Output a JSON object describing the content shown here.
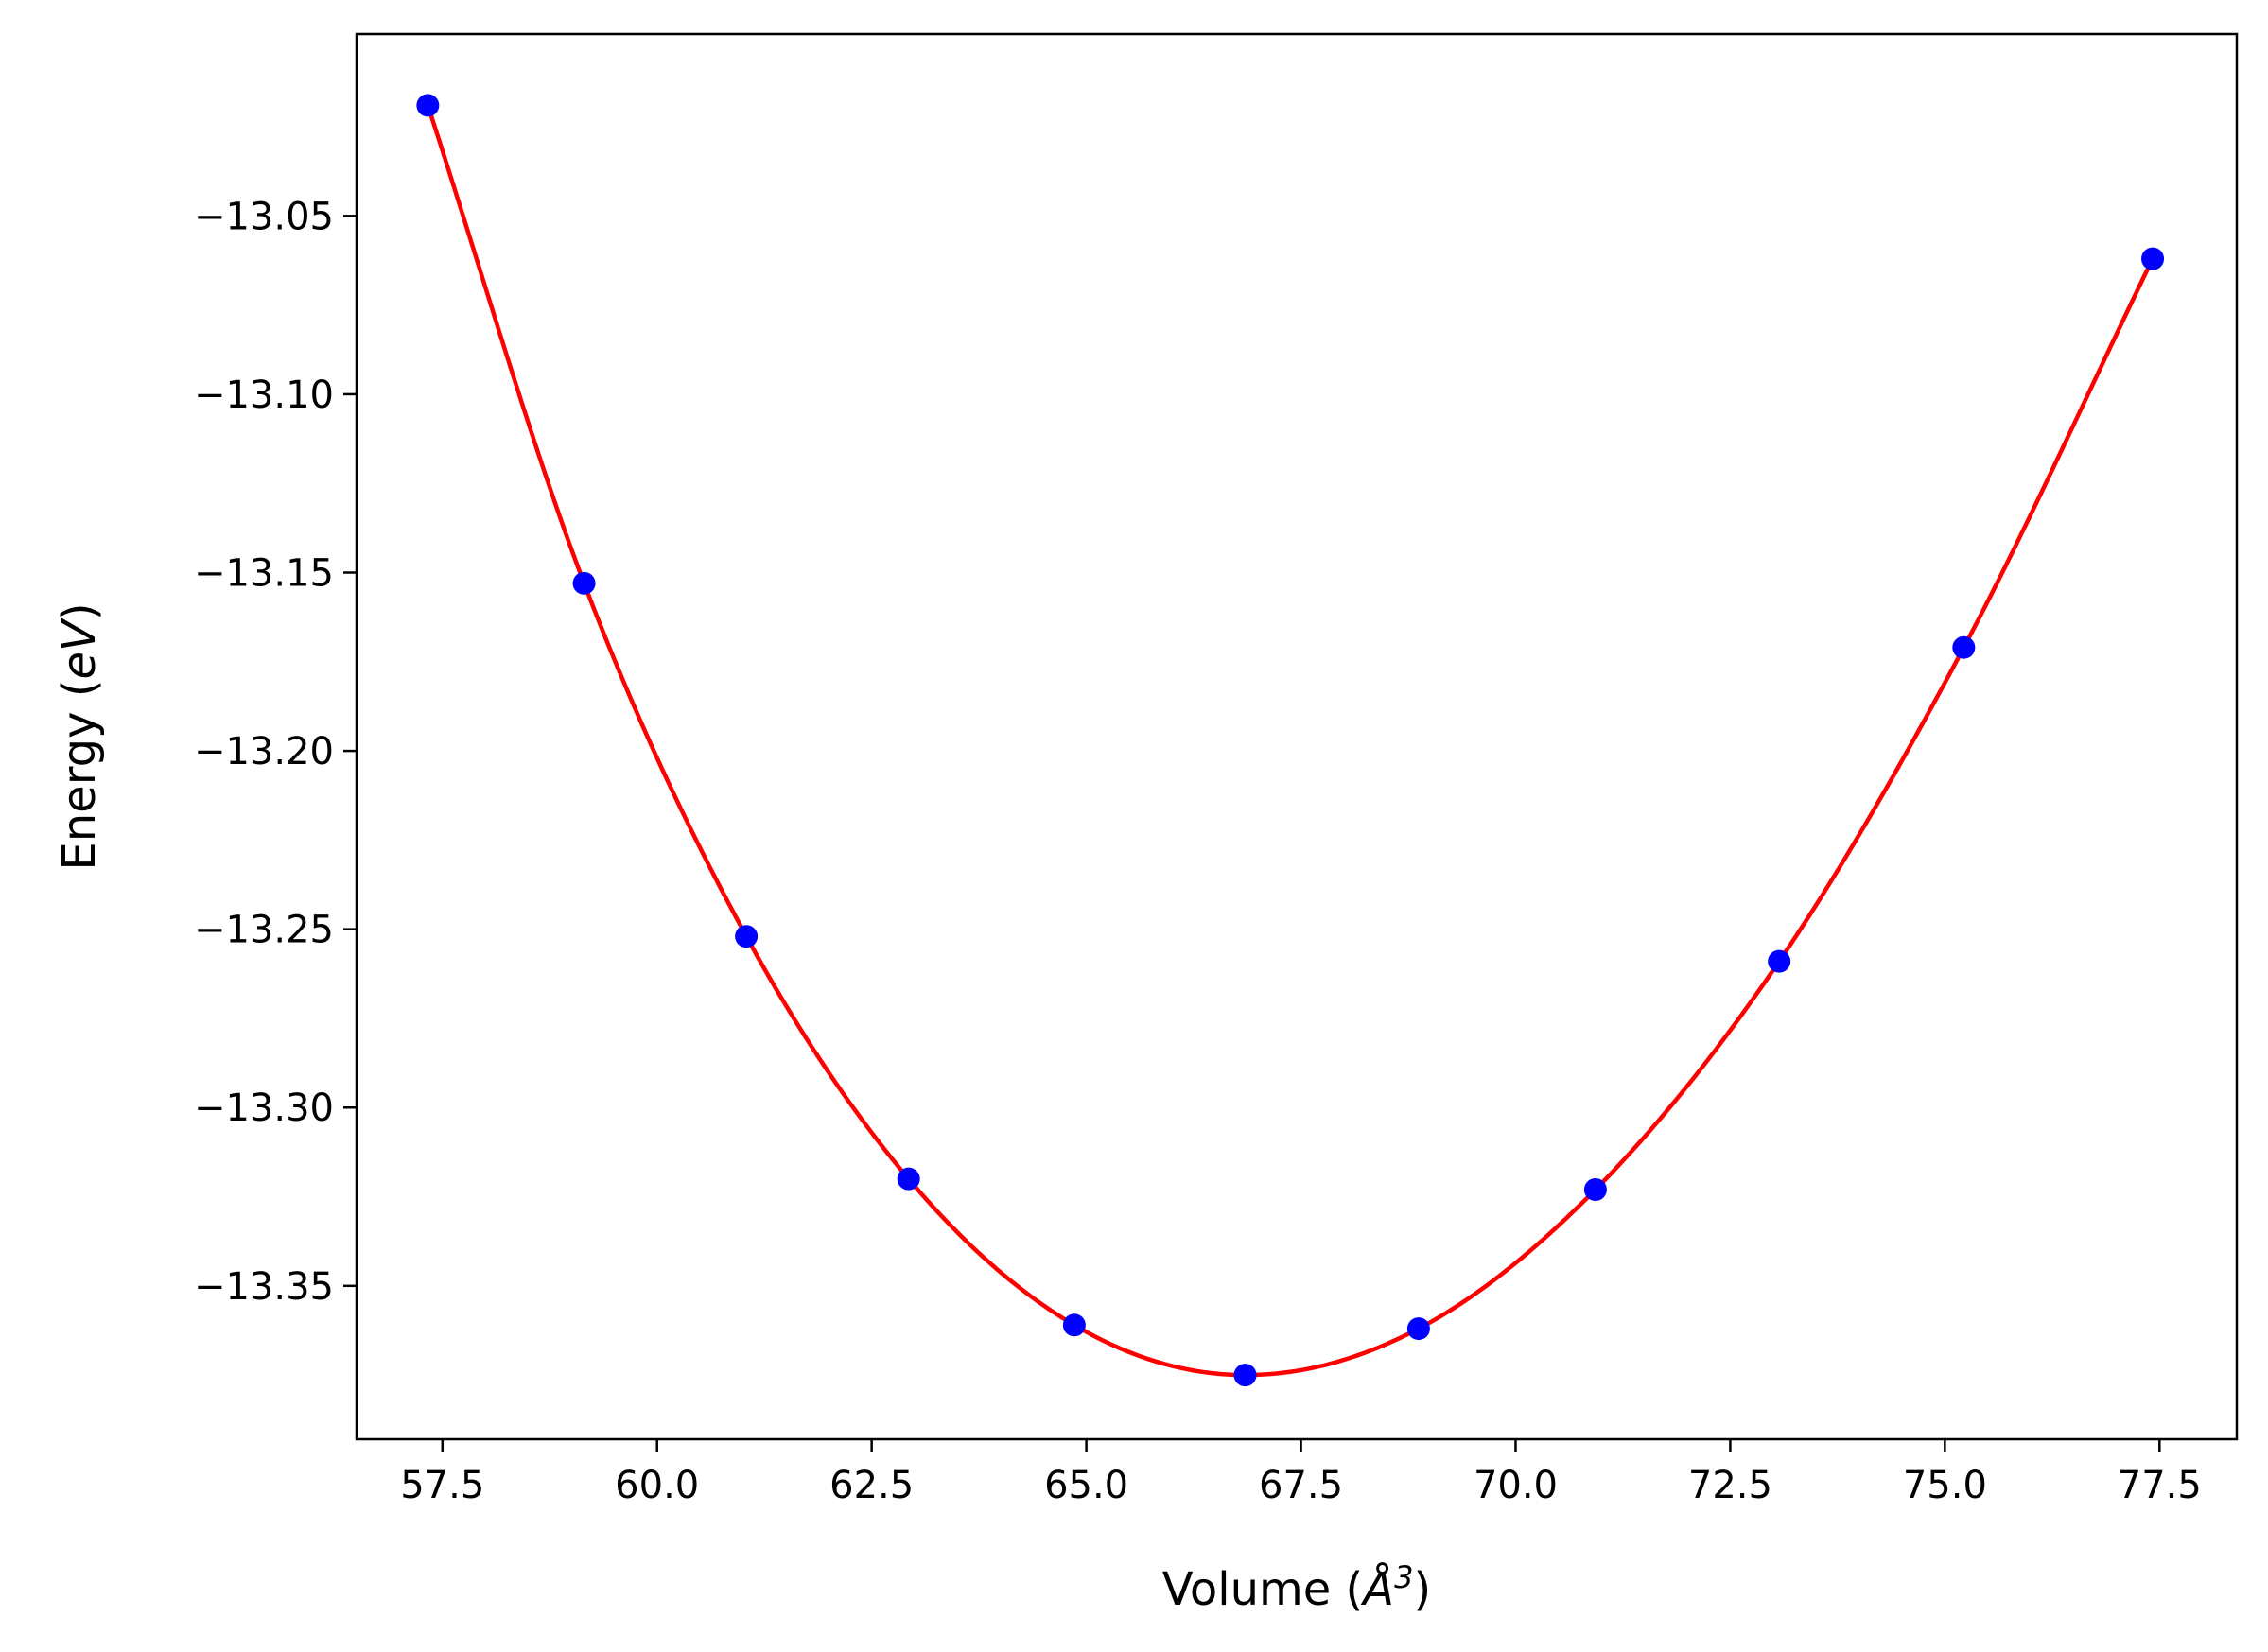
{
  "chart_data": {
    "type": "line",
    "title": "",
    "xlabel": "Volume (Å³)",
    "xlabel_parts": {
      "prefix": "Volume (",
      "symbol": "Å",
      "exponent": "3",
      "suffix": ")"
    },
    "ylabel": "Energy (eV)",
    "ylabel_parts": {
      "prefix": "Energy (",
      "unit": "eV",
      "suffix": ")"
    },
    "xlim": [
      56.5,
      78.4
    ],
    "ylim": [
      -13.393,
      -12.999
    ],
    "xticks": [
      {
        "value": 57.5,
        "label": "57.5"
      },
      {
        "value": 60.0,
        "label": "60.0"
      },
      {
        "value": 62.5,
        "label": "62.5"
      },
      {
        "value": 65.0,
        "label": "65.0"
      },
      {
        "value": 67.5,
        "label": "67.5"
      },
      {
        "value": 70.0,
        "label": "70.0"
      },
      {
        "value": 72.5,
        "label": "72.5"
      },
      {
        "value": 75.0,
        "label": "75.0"
      },
      {
        "value": 77.5,
        "label": "77.5"
      }
    ],
    "yticks": [
      {
        "value": -13.05,
        "label": "−13.05"
      },
      {
        "value": -13.1,
        "label": "−13.10"
      },
      {
        "value": -13.15,
        "label": "−13.15"
      },
      {
        "value": -13.2,
        "label": "−13.20"
      },
      {
        "value": -13.25,
        "label": "−13.25"
      },
      {
        "value": -13.3,
        "label": "−13.30"
      },
      {
        "value": -13.35,
        "label": "−13.35"
      }
    ],
    "grid": false,
    "legend": "none",
    "series": [
      {
        "kind": "scatter",
        "color": "#0000ff",
        "x": [
          57.33,
          59.15,
          61.04,
          62.93,
          64.86,
          66.85,
          68.87,
          70.93,
          73.07,
          75.22,
          77.42
        ],
        "y": [
          -13.019,
          -13.153,
          -13.252,
          -13.32,
          -13.361,
          -13.375,
          -13.362,
          -13.323,
          -13.259,
          -13.171,
          -13.062
        ]
      },
      {
        "kind": "line",
        "color": "#ff0000",
        "fit": "smooth curve through points",
        "x": [
          57.33,
          59.15,
          61.04,
          62.93,
          64.86,
          66.85,
          68.87,
          70.93,
          73.07,
          75.22,
          77.42
        ],
        "y": [
          -13.019,
          -13.153,
          -13.252,
          -13.32,
          -13.361,
          -13.375,
          -13.362,
          -13.323,
          -13.259,
          -13.171,
          -13.062
        ]
      }
    ]
  }
}
